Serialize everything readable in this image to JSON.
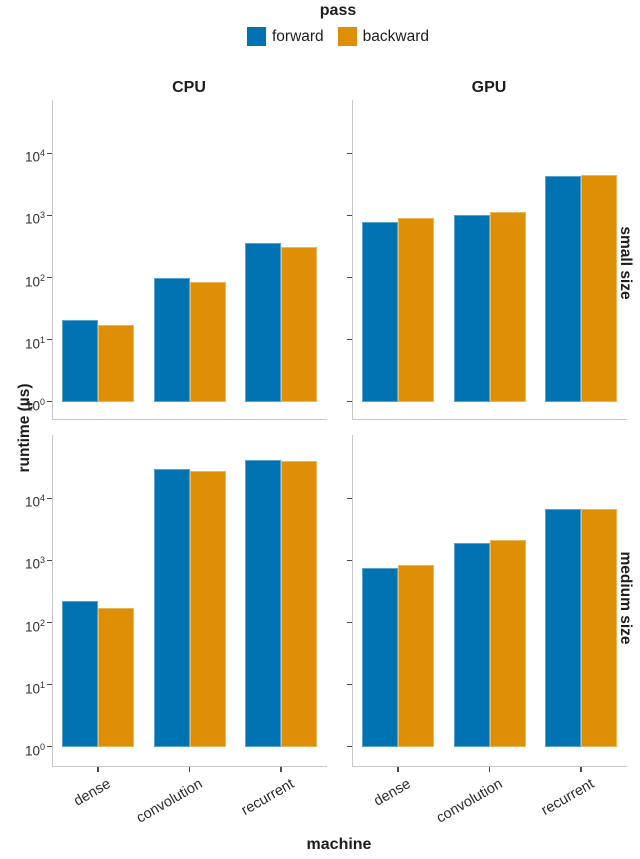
{
  "colors": {
    "forward": "#0173B2",
    "backward": "#DE8F05",
    "spine": "#c9c9c9",
    "tick": "#4a4a4a",
    "text": "#1d1d1d"
  },
  "legend": {
    "title": "pass",
    "entries": [
      {
        "label": "forward",
        "color": "#0173B2"
      },
      {
        "label": "backward",
        "color": "#DE8F05"
      }
    ]
  },
  "chart_data": {
    "type": "bar",
    "log_scale": true,
    "title": "",
    "xlabel": "machine",
    "ylabel": "runtime (µs)",
    "categories": [
      "dense",
      "convolution",
      "recurrent"
    ],
    "col_facets": [
      "CPU",
      "GPU"
    ],
    "row_facets": [
      "small size",
      "medium size"
    ],
    "legend_title": "pass",
    "series_names": [
      "forward",
      "backward"
    ],
    "ytick_base": "10",
    "ytick_exponents": [
      0,
      1,
      2,
      3,
      4
    ],
    "ylim": [
      0.5,
      75000
    ],
    "grid": false,
    "legend_position": "top-center",
    "facets": [
      {
        "row": "small size",
        "col": "CPU",
        "series": [
          {
            "name": "forward",
            "values": [
              21,
              100,
              360
            ]
          },
          {
            "name": "backward",
            "values": [
              17,
              86,
              315
            ]
          }
        ]
      },
      {
        "row": "small size",
        "col": "GPU",
        "series": [
          {
            "name": "forward",
            "values": [
              780,
              1000,
              4300
            ]
          },
          {
            "name": "backward",
            "values": [
              900,
              1120,
              4450
            ]
          }
        ]
      },
      {
        "row": "medium size",
        "col": "CPU",
        "series": [
          {
            "name": "forward",
            "values": [
              220,
              29500,
              42000
            ]
          },
          {
            "name": "backward",
            "values": [
              172,
              28000,
              40000
            ]
          }
        ]
      },
      {
        "row": "medium size",
        "col": "GPU",
        "series": [
          {
            "name": "forward",
            "values": [
              750,
              1930,
              6800
            ]
          },
          {
            "name": "backward",
            "values": [
              850,
              2130,
              6800
            ]
          }
        ]
      }
    ]
  }
}
